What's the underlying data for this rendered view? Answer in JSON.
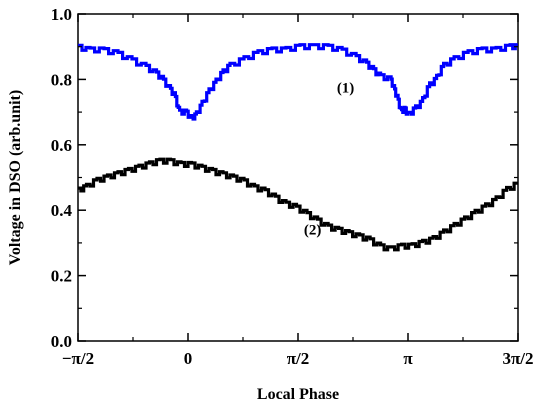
{
  "chart_data": {
    "type": "line",
    "xlabel": "Local Phase",
    "ylabel": "Voltage in DSO (arb.unit)",
    "xlim": [
      -1.5708,
      4.7124
    ],
    "ylim": [
      0.0,
      1.0
    ],
    "x_ticks": [
      {
        "value": -1.5708,
        "label": "−π/2"
      },
      {
        "value": 0,
        "label": "0"
      },
      {
        "value": 1.5708,
        "label": "π/2"
      },
      {
        "value": 3.1416,
        "label": "π"
      },
      {
        "value": 4.7124,
        "label": "3π/2"
      }
    ],
    "y_ticks": [
      {
        "value": 0.0,
        "label": "0.0"
      },
      {
        "value": 0.2,
        "label": "0.2"
      },
      {
        "value": 0.4,
        "label": "0.4"
      },
      {
        "value": 0.6,
        "label": "0.6"
      },
      {
        "value": 0.8,
        "label": "0.8"
      },
      {
        "value": 1.0,
        "label": "1.0"
      }
    ],
    "grid": false,
    "step_style": true,
    "series": [
      {
        "label": "(1)",
        "color": "#0000ff",
        "label_pos": {
          "x": 2.25,
          "y": 0.76
        },
        "points": [
          [
            -1.57,
            0.9
          ],
          [
            -1.4,
            0.89
          ],
          [
            -1.2,
            0.89
          ],
          [
            -1.0,
            0.88
          ],
          [
            -0.8,
            0.86
          ],
          [
            -0.6,
            0.84
          ],
          [
            -0.45,
            0.82
          ],
          [
            -0.35,
            0.8
          ],
          [
            -0.25,
            0.77
          ],
          [
            -0.18,
            0.75
          ],
          [
            -0.12,
            0.7
          ],
          [
            -0.02,
            0.7
          ],
          [
            0.05,
            0.68
          ],
          [
            0.12,
            0.69
          ],
          [
            0.2,
            0.72
          ],
          [
            0.3,
            0.76
          ],
          [
            0.4,
            0.79
          ],
          [
            0.5,
            0.82
          ],
          [
            0.6,
            0.84
          ],
          [
            0.8,
            0.86
          ],
          [
            1.0,
            0.88
          ],
          [
            1.2,
            0.89
          ],
          [
            1.4,
            0.89
          ],
          [
            1.6,
            0.9
          ],
          [
            1.8,
            0.9
          ],
          [
            2.0,
            0.9
          ],
          [
            2.2,
            0.89
          ],
          [
            2.4,
            0.87
          ],
          [
            2.55,
            0.85
          ],
          [
            2.65,
            0.83
          ],
          [
            2.75,
            0.81
          ],
          [
            2.9,
            0.8
          ],
          [
            2.95,
            0.77
          ],
          [
            3.0,
            0.74
          ],
          [
            3.05,
            0.7
          ],
          [
            3.1,
            0.71
          ],
          [
            3.15,
            0.69
          ],
          [
            3.25,
            0.71
          ],
          [
            3.35,
            0.73
          ],
          [
            3.45,
            0.78
          ],
          [
            3.55,
            0.8
          ],
          [
            3.65,
            0.84
          ],
          [
            3.8,
            0.86
          ],
          [
            4.0,
            0.88
          ],
          [
            4.2,
            0.89
          ],
          [
            4.4,
            0.89
          ],
          [
            4.6,
            0.9
          ],
          [
            4.71,
            0.9
          ]
        ]
      },
      {
        "label": "(2)",
        "color": "#000000",
        "label_pos": {
          "x": 1.78,
          "y": 0.325
        },
        "points": [
          [
            -1.57,
            0.46
          ],
          [
            -1.45,
            0.47
          ],
          [
            -1.3,
            0.49
          ],
          [
            -1.15,
            0.5
          ],
          [
            -1.0,
            0.51
          ],
          [
            -0.85,
            0.52
          ],
          [
            -0.7,
            0.53
          ],
          [
            -0.55,
            0.54
          ],
          [
            -0.4,
            0.55
          ],
          [
            -0.25,
            0.55
          ],
          [
            -0.1,
            0.54
          ],
          [
            0.05,
            0.54
          ],
          [
            0.2,
            0.53
          ],
          [
            0.35,
            0.52
          ],
          [
            0.5,
            0.51
          ],
          [
            0.65,
            0.5
          ],
          [
            0.8,
            0.49
          ],
          [
            0.95,
            0.47
          ],
          [
            1.1,
            0.46
          ],
          [
            1.25,
            0.44
          ],
          [
            1.4,
            0.42
          ],
          [
            1.55,
            0.41
          ],
          [
            1.7,
            0.39
          ],
          [
            1.85,
            0.37
          ],
          [
            2.0,
            0.35
          ],
          [
            2.15,
            0.34
          ],
          [
            2.3,
            0.33
          ],
          [
            2.45,
            0.32
          ],
          [
            2.6,
            0.31
          ],
          [
            2.75,
            0.29
          ],
          [
            2.9,
            0.28
          ],
          [
            3.05,
            0.29
          ],
          [
            3.2,
            0.29
          ],
          [
            3.35,
            0.3
          ],
          [
            3.5,
            0.31
          ],
          [
            3.65,
            0.33
          ],
          [
            3.8,
            0.35
          ],
          [
            3.95,
            0.37
          ],
          [
            4.1,
            0.39
          ],
          [
            4.25,
            0.41
          ],
          [
            4.4,
            0.43
          ],
          [
            4.55,
            0.46
          ],
          [
            4.71,
            0.48
          ]
        ]
      }
    ]
  }
}
